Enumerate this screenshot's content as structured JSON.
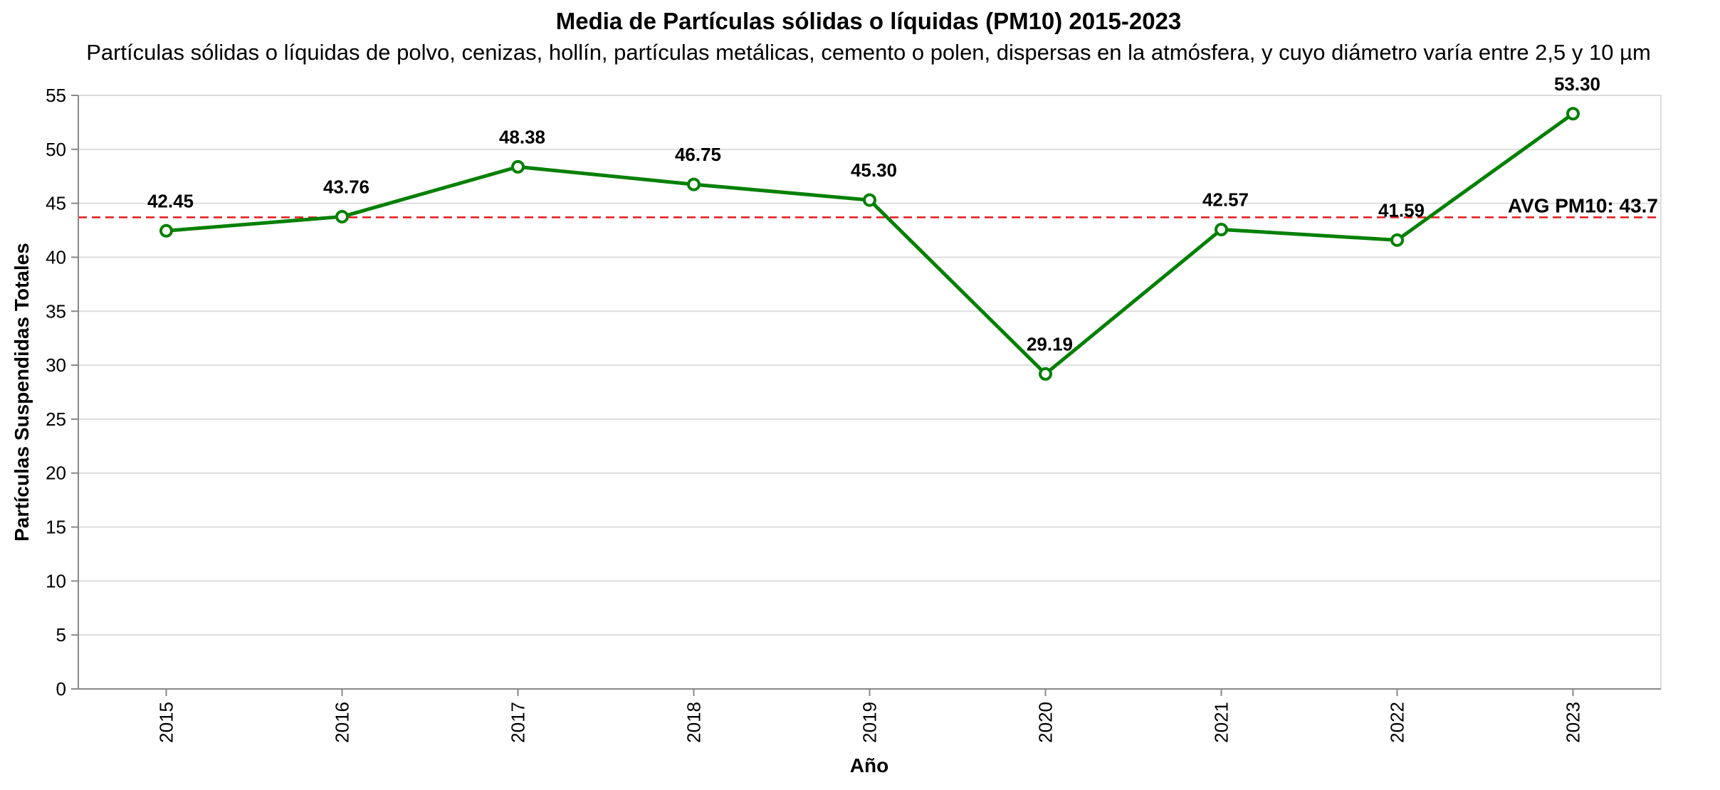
{
  "chart_data": {
    "type": "line",
    "title": "Media de Partículas sólidas o líquidas (PM10) 2015-2023",
    "subtitle": "Partículas sólidas o líquidas de polvo, cenizas, hollín, partículas metálicas, cemento o polen, dispersas en la atmósfera, y cuyo diámetro varía entre 2,5 y 10 µm",
    "xlabel": "Año",
    "ylabel": "Partículas Suspendidas Totales",
    "categories": [
      "2015",
      "2016",
      "2017",
      "2018",
      "2019",
      "2020",
      "2021",
      "2022",
      "2023"
    ],
    "values": [
      42.45,
      43.76,
      48.38,
      46.75,
      45.3,
      29.19,
      42.57,
      41.59,
      53.3
    ],
    "data_labels": [
      "42.45",
      "43.76",
      "48.38",
      "46.75",
      "45.30",
      "29.19",
      "42.57",
      "41.59",
      "53.30"
    ],
    "ylim": [
      0,
      55
    ],
    "yticks": [
      0,
      5,
      10,
      15,
      20,
      25,
      30,
      35,
      40,
      45,
      50,
      55
    ],
    "grid": true,
    "line_color": "#008000",
    "reference_line": {
      "value": 43.7,
      "label": "AVG PM10: 43.7",
      "color": "#e41a1c",
      "style": "dashed"
    }
  }
}
